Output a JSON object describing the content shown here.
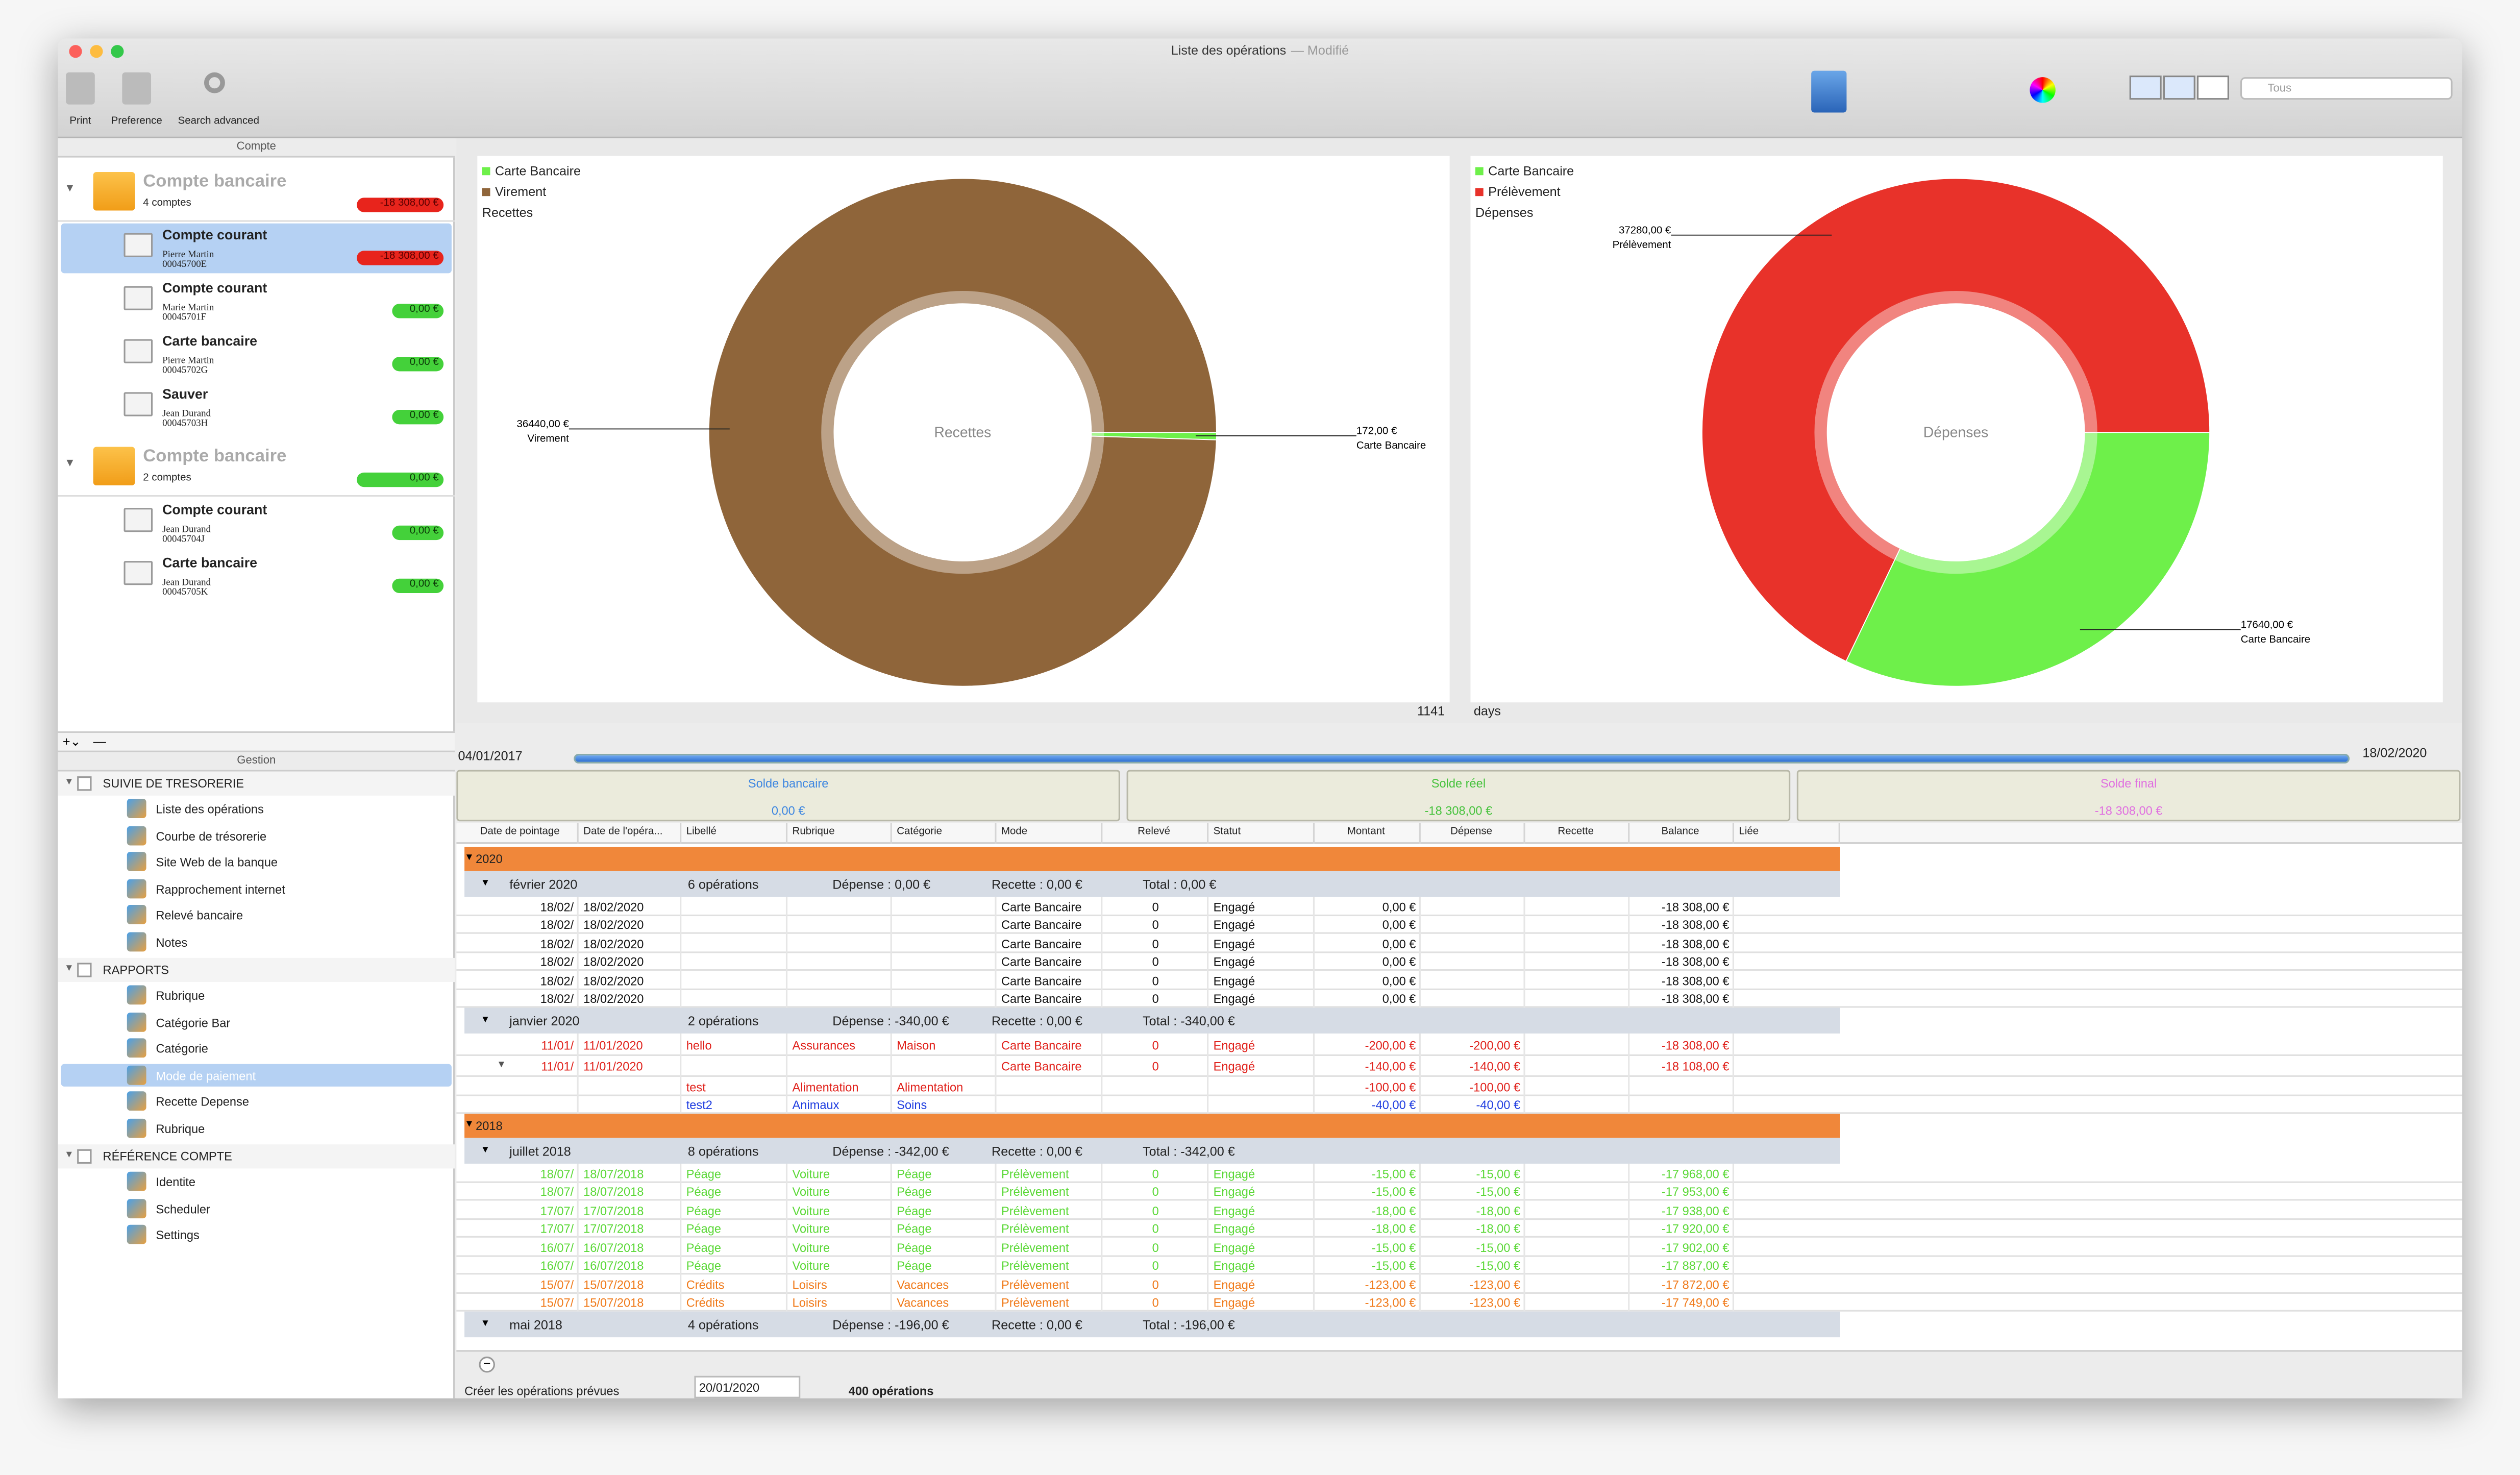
{
  "window": {
    "title": "Liste des opérations",
    "status": "— Modifié"
  },
  "toolbar": {
    "items": [
      "Print",
      "Preference",
      "Search advanced"
    ],
    "search_placeholder": "Tous"
  },
  "accounts": {
    "header": "Compte",
    "groups": [
      {
        "name": "Compte bancaire",
        "count": "4 comptes",
        "balance": "-18 308,00 €",
        "items": [
          {
            "name": "Compte courant",
            "holder": "Pierre Martin",
            "number": "00045700E",
            "balance": "-18 308,00 €",
            "selected": true
          },
          {
            "name": "Compte courant",
            "holder": "Marie Martin",
            "number": "00045701F",
            "balance": "0,00 €"
          },
          {
            "name": "Carte bancaire",
            "holder": "Pierre Martin",
            "number": "00045702G",
            "balance": "0,00 €"
          },
          {
            "name": "Sauver",
            "holder": "Jean Durand",
            "number": "00045703H",
            "balance": "0,00 €"
          }
        ]
      },
      {
        "name": "Compte bancaire",
        "count": "2 comptes",
        "balance": "0,00 €",
        "items": [
          {
            "name": "Compte courant",
            "holder": "Jean Durand",
            "number": "00045704J",
            "balance": "0,00 €"
          },
          {
            "name": "Carte bancaire",
            "holder": "Jean Durand",
            "number": "00045705K",
            "balance": "0,00 €"
          }
        ]
      }
    ]
  },
  "gestion": {
    "header": "Gestion",
    "sections": [
      {
        "title": "SUIVIE DE TRESORERIE",
        "items": [
          "Liste des opérations",
          "Courbe de trésorerie",
          "Site Web de la banque",
          "Rapprochement internet",
          "Relevé bancaire",
          "Notes"
        ]
      },
      {
        "title": "RAPPORTS",
        "items": [
          "Rubrique",
          "Catégorie Bar",
          "Catégorie",
          "Mode de paiement",
          "Recette Depense",
          "Rubrique"
        ],
        "selected": 3
      },
      {
        "title": "RÉFÉRENCE COMPTE",
        "items": [
          "Identite",
          "Scheduler",
          "Settings"
        ]
      }
    ]
  },
  "chart_data": [
    {
      "type": "pie",
      "legend_title": "Recettes",
      "center_label": "Recettes",
      "categories": [
        "Carte Bancaire",
        "Virement"
      ],
      "values": [
        172,
        36440
      ],
      "value_labels": [
        "172,00 €",
        "36440,00 €"
      ],
      "colors": [
        "#6ef04a",
        "#8f653a"
      ]
    },
    {
      "type": "pie",
      "legend_title": "Dépenses",
      "center_label": "Dépenses",
      "categories": [
        "Carte Bancaire",
        "Prélèvement"
      ],
      "values": [
        17640,
        37280
      ],
      "value_labels": [
        "17640,00 €",
        "37280,00 €"
      ],
      "colors": [
        "#6ef04a",
        "#e8322a"
      ]
    }
  ],
  "range": {
    "days": 1141,
    "unit": "days",
    "start": "04/01/2017",
    "end": "18/02/2020"
  },
  "soldes": [
    {
      "label": "Solde bancaire",
      "value": "0,00 €",
      "color": "#3d86e0"
    },
    {
      "label": "Solde réel",
      "value": "-18 308,00 €",
      "color": "#45c23c"
    },
    {
      "label": "Solde final",
      "value": "-18 308,00 €",
      "color": "#e070e0"
    }
  ],
  "table": {
    "columns": [
      "Date de pointage",
      "Date de l'opéra...",
      "Libellé",
      "Rubrique",
      "Catégorie",
      "Mode",
      "Relevé",
      "Statut",
      "Montant",
      "Dépense",
      "Recette",
      "Balance",
      "Liée"
    ],
    "rows": [
      {
        "year": "2020"
      },
      {
        "month": "février 2020",
        "count": "6 opérations",
        "depense": "Dépense : 0,00 €",
        "recette": "Recette : 0,00 €",
        "total": "Total : 0,00 €"
      },
      {
        "color": "#111111",
        "cells": {
          "pointage": "18/02/",
          "operation": "18/02/2020",
          "mode": "Carte Bancaire",
          "releve": "0",
          "statut": "Engagé",
          "montant": "0,00 €",
          "balance": "-18 308,00 €"
        }
      },
      {
        "color": "#111111",
        "cells": {
          "pointage": "18/02/",
          "operation": "18/02/2020",
          "mode": "Carte Bancaire",
          "releve": "0",
          "statut": "Engagé",
          "montant": "0,00 €",
          "balance": "-18 308,00 €"
        }
      },
      {
        "color": "#111111",
        "cells": {
          "pointage": "18/02/",
          "operation": "18/02/2020",
          "mode": "Carte Bancaire",
          "releve": "0",
          "statut": "Engagé",
          "montant": "0,00 €",
          "balance": "-18 308,00 €"
        }
      },
      {
        "color": "#111111",
        "cells": {
          "pointage": "18/02/",
          "operation": "18/02/2020",
          "mode": "Carte Bancaire",
          "releve": "0",
          "statut": "Engagé",
          "montant": "0,00 €",
          "balance": "-18 308,00 €"
        }
      },
      {
        "color": "#111111",
        "cells": {
          "pointage": "18/02/",
          "operation": "18/02/2020",
          "mode": "Carte Bancaire",
          "releve": "0",
          "statut": "Engagé",
          "montant": "0,00 €",
          "balance": "-18 308,00 €"
        }
      },
      {
        "color": "#111111",
        "cells": {
          "pointage": "18/02/",
          "operation": "18/02/2020",
          "mode": "Carte Bancaire",
          "releve": "0",
          "statut": "Engagé",
          "montant": "0,00 €",
          "balance": "-18 308,00 €"
        }
      },
      {
        "month": "janvier 2020",
        "count": "2 opérations",
        "depense": "Dépense : -340,00 €",
        "recette": "Recette : 0,00 €",
        "total": "Total : -340,00 €"
      },
      {
        "color": "#e0201a",
        "tall": true,
        "cells": {
          "pointage": "11/01/",
          "operation": "11/01/2020",
          "libelle": "hello",
          "rubrique": "Assurances",
          "categorie": "Maison",
          "mode": "Carte Bancaire",
          "releve": "0",
          "statut": "Engagé",
          "montant": "-200,00 €",
          "depense": "-200,00 €",
          "balance": "-18 308,00 €"
        }
      },
      {
        "color": "#e0201a",
        "tall": true,
        "expanded": true,
        "cells": {
          "pointage": "11/01/",
          "operation": "11/01/2020",
          "mode": "Carte Bancaire",
          "releve": "0",
          "statut": "Engagé",
          "montant": "-140,00 €",
          "depense": "-140,00 €",
          "balance": "-18 108,00 €"
        }
      },
      {
        "color": "#e0201a",
        "cells": {
          "libelle": "test",
          "rubrique": "Alimentation",
          "categorie": "Alimentation",
          "montant": "-100,00 €",
          "depense": "-100,00 €"
        }
      },
      {
        "color": "#1e3ce0",
        "cells": {
          "libelle": "test2",
          "rubrique": "Animaux",
          "categorie": "Soins",
          "montant": "-40,00 €",
          "depense": "-40,00 €"
        }
      },
      {
        "year": "2018"
      },
      {
        "month": "juillet 2018",
        "count": "8 opérations",
        "depense": "Dépense : -342,00 €",
        "recette": "Recette : 0,00 €",
        "total": "Total : -342,00 €"
      },
      {
        "color": "#5ad836",
        "cells": {
          "pointage": "18/07/",
          "operation": "18/07/2018",
          "libelle": "Péage",
          "rubrique": "Voiture",
          "categorie": "Péage",
          "mode": "Prélèvement",
          "releve": "0",
          "statut": "Engagé",
          "montant": "-15,00 €",
          "depense": "-15,00 €",
          "balance": "-17 968,00 €"
        }
      },
      {
        "color": "#5ad836",
        "cells": {
          "pointage": "18/07/",
          "operation": "18/07/2018",
          "libelle": "Péage",
          "rubrique": "Voiture",
          "categorie": "Péage",
          "mode": "Prélèvement",
          "releve": "0",
          "statut": "Engagé",
          "montant": "-15,00 €",
          "depense": "-15,00 €",
          "balance": "-17 953,00 €"
        }
      },
      {
        "color": "#5ad836",
        "cells": {
          "pointage": "17/07/",
          "operation": "17/07/2018",
          "libelle": "Péage",
          "rubrique": "Voiture",
          "categorie": "Péage",
          "mode": "Prélèvement",
          "releve": "0",
          "statut": "Engagé",
          "montant": "-18,00 €",
          "depense": "-18,00 €",
          "balance": "-17 938,00 €"
        }
      },
      {
        "color": "#5ad836",
        "cells": {
          "pointage": "17/07/",
          "operation": "17/07/2018",
          "libelle": "Péage",
          "rubrique": "Voiture",
          "categorie": "Péage",
          "mode": "Prélèvement",
          "releve": "0",
          "statut": "Engagé",
          "montant": "-18,00 €",
          "depense": "-18,00 €",
          "balance": "-17 920,00 €"
        }
      },
      {
        "color": "#5ad836",
        "cells": {
          "pointage": "16/07/",
          "operation": "16/07/2018",
          "libelle": "Péage",
          "rubrique": "Voiture",
          "categorie": "Péage",
          "mode": "Prélèvement",
          "releve": "0",
          "statut": "Engagé",
          "montant": "-15,00 €",
          "depense": "-15,00 €",
          "balance": "-17 902,00 €"
        }
      },
      {
        "color": "#5ad836",
        "cells": {
          "pointage": "16/07/",
          "operation": "16/07/2018",
          "libelle": "Péage",
          "rubrique": "Voiture",
          "categorie": "Péage",
          "mode": "Prélèvement",
          "releve": "0",
          "statut": "Engagé",
          "montant": "-15,00 €",
          "depense": "-15,00 €",
          "balance": "-17 887,00 €"
        }
      },
      {
        "color": "#f07a1a",
        "cells": {
          "pointage": "15/07/",
          "operation": "15/07/2018",
          "libelle": "Crédits",
          "rubrique": "Loisirs",
          "categorie": "Vacances",
          "mode": "Prélèvement",
          "releve": "0",
          "statut": "Engagé",
          "montant": "-123,00 €",
          "depense": "-123,00 €",
          "balance": "-17 872,00 €"
        }
      },
      {
        "color": "#f07a1a",
        "cells": {
          "pointage": "15/07/",
          "operation": "15/07/2018",
          "libelle": "Crédits",
          "rubrique": "Loisirs",
          "categorie": "Vacances",
          "mode": "Prélèvement",
          "releve": "0",
          "statut": "Engagé",
          "montant": "-123,00 €",
          "depense": "-123,00 €",
          "balance": "-17 749,00 €"
        }
      },
      {
        "month": "mai 2018",
        "count": "4 opérations",
        "depense": "Dépense : -196,00 €",
        "recette": "Recette : 0,00 €",
        "total": "Total : -196,00 €"
      }
    ]
  },
  "footer": {
    "action": "Créer les opérations prévues",
    "date": "20/01/2020",
    "count": "400 opérations"
  }
}
